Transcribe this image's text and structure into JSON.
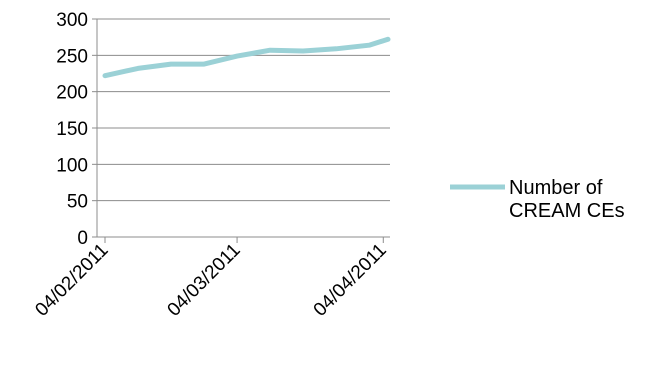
{
  "chart_data": {
    "type": "line",
    "title": "",
    "xlabel": "",
    "ylabel": "",
    "ylim": [
      0,
      300
    ],
    "y_ticks": [
      0,
      50,
      100,
      150,
      200,
      250,
      300
    ],
    "x_tick_labels": [
      "04/02/2011",
      "04/03/2011",
      "04/04/2011"
    ],
    "x_tick_dates": [
      "2011-02-04",
      "2011-03-04",
      "2011-04-04"
    ],
    "x_range": [
      "2011-02-04",
      "2011-04-05"
    ],
    "grid": "horizontal",
    "legend_position": "right",
    "series": [
      {
        "name": "Number of CREAM CEs",
        "color": "#9bd1d6",
        "points": [
          {
            "x": "2011-02-04",
            "y": 222
          },
          {
            "x": "2011-02-11",
            "y": 232
          },
          {
            "x": "2011-02-18",
            "y": 238
          },
          {
            "x": "2011-02-25",
            "y": 238
          },
          {
            "x": "2011-03-04",
            "y": 249
          },
          {
            "x": "2011-03-11",
            "y": 257
          },
          {
            "x": "2011-03-18",
            "y": 256
          },
          {
            "x": "2011-03-25",
            "y": 259
          },
          {
            "x": "2011-04-01",
            "y": 264
          },
          {
            "x": "2011-04-05",
            "y": 272
          }
        ]
      }
    ]
  },
  "legend": {
    "line1": "Number of",
    "line2": "CREAM CEs"
  }
}
